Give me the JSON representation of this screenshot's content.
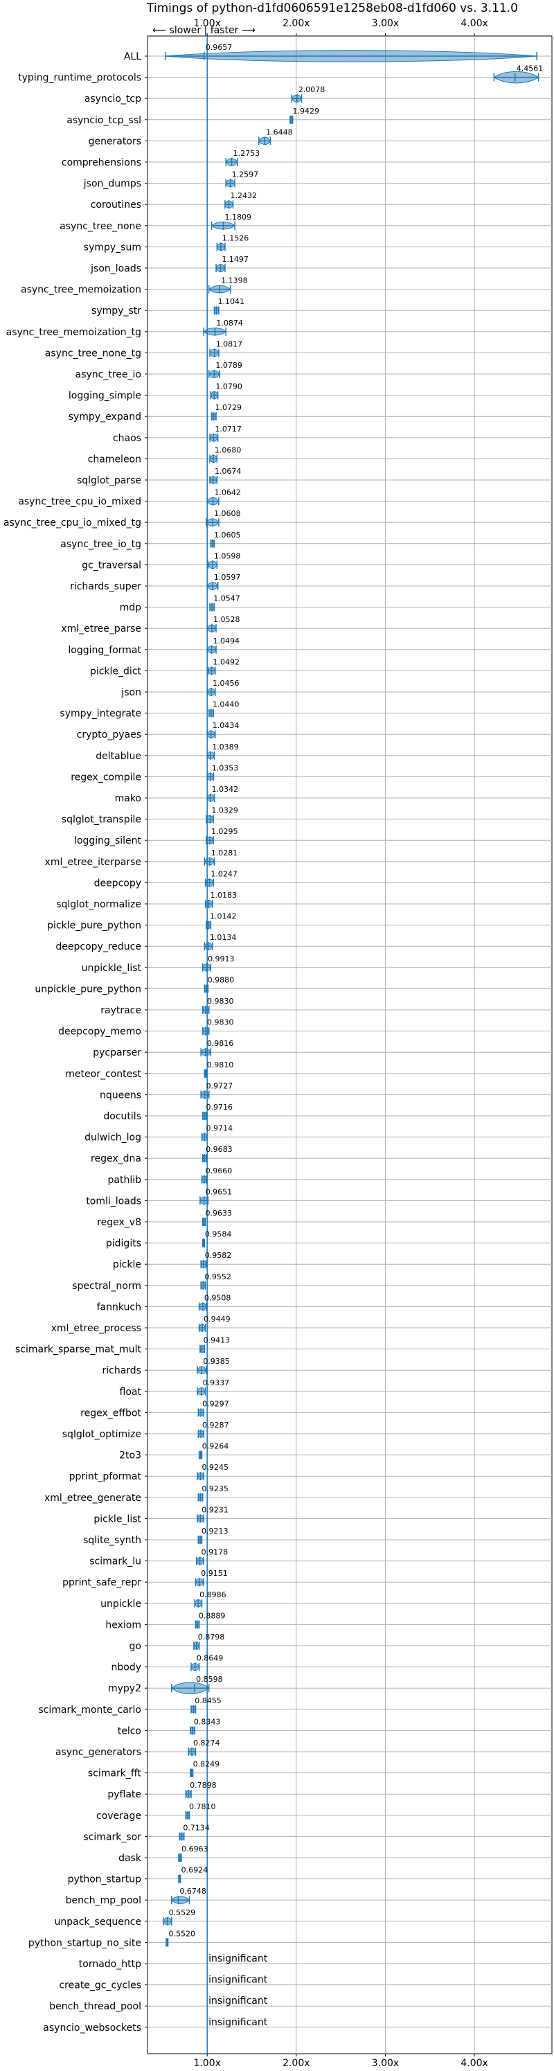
{
  "chart_data": {
    "type": "violin",
    "title": "Timings of python-d1fd0606591e1258eb08-d1fd060 vs. 3.11.0",
    "direction_label": "⟵ slower | faster ⟶",
    "x_ticks": [
      1,
      2,
      3,
      4
    ],
    "x_tick_labels": [
      "1.00x",
      "2.00x",
      "3.00x",
      "4.00x"
    ],
    "xlim": [
      0.33,
      4.87
    ],
    "reference_line": 1.0,
    "grid": true,
    "insignificant_label": "insignificant",
    "colors": {
      "violin": "#1f77b4",
      "reference": "#1f77b4",
      "median": "#ff7f0e",
      "grid": "#b0b0b0"
    },
    "rows": [
      {
        "name": "ALL",
        "value": 0.9657,
        "label": "0.9657",
        "lo": 0.53,
        "hi": 4.7,
        "width": "wide"
      },
      {
        "name": "typing_runtime_protocols",
        "value": 4.4561,
        "label": "4.4561",
        "lo": 4.22,
        "hi": 4.72,
        "width": "wide"
      },
      {
        "name": "asyncio_tcp",
        "value": 2.0078,
        "label": "2.0078",
        "lo": 1.95,
        "hi": 2.06
      },
      {
        "name": "asyncio_tcp_ssl",
        "value": 1.9429,
        "label": "1.9429",
        "lo": 1.93,
        "hi": 1.96
      },
      {
        "name": "generators",
        "value": 1.6448,
        "label": "1.6448",
        "lo": 1.58,
        "hi": 1.71
      },
      {
        "name": "comprehensions",
        "value": 1.2753,
        "label": "1.2753",
        "lo": 1.21,
        "hi": 1.34
      },
      {
        "name": "json_dumps",
        "value": 1.2597,
        "label": "1.2597",
        "lo": 1.21,
        "hi": 1.31
      },
      {
        "name": "coroutines",
        "value": 1.2432,
        "label": "1.2432",
        "lo": 1.2,
        "hi": 1.29
      },
      {
        "name": "async_tree_none",
        "value": 1.1809,
        "label": "1.1809",
        "lo": 1.05,
        "hi": 1.31
      },
      {
        "name": "sympy_sum",
        "value": 1.1526,
        "label": "1.1526",
        "lo": 1.11,
        "hi": 1.2
      },
      {
        "name": "json_loads",
        "value": 1.1497,
        "label": "1.1497",
        "lo": 1.1,
        "hi": 1.2
      },
      {
        "name": "async_tree_memoization",
        "value": 1.1398,
        "label": "1.1398",
        "lo": 1.02,
        "hi": 1.26
      },
      {
        "name": "sympy_str",
        "value": 1.1041,
        "label": "1.1041",
        "lo": 1.08,
        "hi": 1.13
      },
      {
        "name": "async_tree_memoization_tg",
        "value": 1.0874,
        "label": "1.0874",
        "lo": 0.96,
        "hi": 1.21
      },
      {
        "name": "async_tree_none_tg",
        "value": 1.0817,
        "label": "1.0817",
        "lo": 1.03,
        "hi": 1.13
      },
      {
        "name": "async_tree_io",
        "value": 1.0789,
        "label": "1.0789",
        "lo": 1.02,
        "hi": 1.14
      },
      {
        "name": "logging_simple",
        "value": 1.079,
        "label": "1.0790",
        "lo": 1.04,
        "hi": 1.12
      },
      {
        "name": "sympy_expand",
        "value": 1.0729,
        "label": "1.0729",
        "lo": 1.05,
        "hi": 1.1
      },
      {
        "name": "chaos",
        "value": 1.0717,
        "label": "1.0717",
        "lo": 1.03,
        "hi": 1.12
      },
      {
        "name": "chameleon",
        "value": 1.068,
        "label": "1.0680",
        "lo": 1.03,
        "hi": 1.11
      },
      {
        "name": "sqlglot_parse",
        "value": 1.0674,
        "label": "1.0674",
        "lo": 1.03,
        "hi": 1.11
      },
      {
        "name": "async_tree_cpu_io_mixed",
        "value": 1.0642,
        "label": "1.0642",
        "lo": 1.0,
        "hi": 1.13
      },
      {
        "name": "async_tree_cpu_io_mixed_tg",
        "value": 1.0608,
        "label": "1.0608",
        "lo": 0.99,
        "hi": 1.13
      },
      {
        "name": "async_tree_io_tg",
        "value": 1.0605,
        "label": "1.0605",
        "lo": 1.04,
        "hi": 1.08
      },
      {
        "name": "gc_traversal",
        "value": 1.0598,
        "label": "1.0598",
        "lo": 1.01,
        "hi": 1.11
      },
      {
        "name": "richards_super",
        "value": 1.0597,
        "label": "1.0597",
        "lo": 1.0,
        "hi": 1.12
      },
      {
        "name": "mdp",
        "value": 1.0547,
        "label": "1.0547",
        "lo": 1.03,
        "hi": 1.08
      },
      {
        "name": "xml_etree_parse",
        "value": 1.0528,
        "label": "1.0528",
        "lo": 1.0,
        "hi": 1.1
      },
      {
        "name": "logging_format",
        "value": 1.0494,
        "label": "1.0494",
        "lo": 1.0,
        "hi": 1.1
      },
      {
        "name": "pickle_dict",
        "value": 1.0492,
        "label": "1.0492",
        "lo": 1.01,
        "hi": 1.09
      },
      {
        "name": "json",
        "value": 1.0456,
        "label": "1.0456",
        "lo": 1.0,
        "hi": 1.09
      },
      {
        "name": "sympy_integrate",
        "value": 1.044,
        "label": "1.0440",
        "lo": 1.02,
        "hi": 1.07
      },
      {
        "name": "crypto_pyaes",
        "value": 1.0434,
        "label": "1.0434",
        "lo": 1.0,
        "hi": 1.09
      },
      {
        "name": "deltablue",
        "value": 1.0389,
        "label": "1.0389",
        "lo": 1.0,
        "hi": 1.08
      },
      {
        "name": "regex_compile",
        "value": 1.0353,
        "label": "1.0353",
        "lo": 1.0,
        "hi": 1.07
      },
      {
        "name": "mako",
        "value": 1.0342,
        "label": "1.0342",
        "lo": 1.0,
        "hi": 1.08
      },
      {
        "name": "sqlglot_transpile",
        "value": 1.0329,
        "label": "1.0329",
        "lo": 0.99,
        "hi": 1.07
      },
      {
        "name": "logging_silent",
        "value": 1.0295,
        "label": "1.0295",
        "lo": 0.99,
        "hi": 1.07
      },
      {
        "name": "xml_etree_iterparse",
        "value": 1.0281,
        "label": "1.0281",
        "lo": 0.97,
        "hi": 1.08
      },
      {
        "name": "deepcopy",
        "value": 1.0247,
        "label": "1.0247",
        "lo": 0.98,
        "hi": 1.07
      },
      {
        "name": "sqlglot_normalize",
        "value": 1.0183,
        "label": "1.0183",
        "lo": 0.98,
        "hi": 1.06
      },
      {
        "name": "pickle_pure_python",
        "value": 1.0142,
        "label": "1.0142",
        "lo": 0.99,
        "hi": 1.04
      },
      {
        "name": "deepcopy_reduce",
        "value": 1.0134,
        "label": "1.0134",
        "lo": 0.97,
        "hi": 1.06
      },
      {
        "name": "unpickle_list",
        "value": 0.9913,
        "label": "0.9913",
        "lo": 0.95,
        "hi": 1.04
      },
      {
        "name": "unpickle_pure_python",
        "value": 0.988,
        "label": "0.9880",
        "lo": 0.97,
        "hi": 1.01
      },
      {
        "name": "raytrace",
        "value": 0.983,
        "label": "0.9830",
        "lo": 0.95,
        "hi": 1.02
      },
      {
        "name": "deepcopy_memo",
        "value": 0.983,
        "label": "0.9830",
        "lo": 0.95,
        "hi": 1.02
      },
      {
        "name": "pycparser",
        "value": 0.9816,
        "label": "0.9816",
        "lo": 0.93,
        "hi": 1.04
      },
      {
        "name": "meteor_contest",
        "value": 0.981,
        "label": "0.9810",
        "lo": 0.97,
        "hi": 0.99
      },
      {
        "name": "nqueens",
        "value": 0.9727,
        "label": "0.9727",
        "lo": 0.93,
        "hi": 1.02
      },
      {
        "name": "docutils",
        "value": 0.9716,
        "label": "0.9716",
        "lo": 0.95,
        "hi": 0.99
      },
      {
        "name": "dulwich_log",
        "value": 0.9714,
        "label": "0.9714",
        "lo": 0.94,
        "hi": 1.0
      },
      {
        "name": "regex_dna",
        "value": 0.9683,
        "label": "0.9683",
        "lo": 0.95,
        "hi": 0.99
      },
      {
        "name": "pathlib",
        "value": 0.966,
        "label": "0.9660",
        "lo": 0.94,
        "hi": 0.99
      },
      {
        "name": "tomli_loads",
        "value": 0.9651,
        "label": "0.9651",
        "lo": 0.92,
        "hi": 1.01
      },
      {
        "name": "regex_v8",
        "value": 0.9633,
        "label": "0.9633",
        "lo": 0.95,
        "hi": 0.98
      },
      {
        "name": "pidigits",
        "value": 0.9584,
        "label": "0.9584",
        "lo": 0.95,
        "hi": 0.97
      },
      {
        "name": "pickle",
        "value": 0.9582,
        "label": "0.9582",
        "lo": 0.93,
        "hi": 0.99
      },
      {
        "name": "spectral_norm",
        "value": 0.9552,
        "label": "0.9552",
        "lo": 0.93,
        "hi": 0.98
      },
      {
        "name": "fannkuch",
        "value": 0.9508,
        "label": "0.9508",
        "lo": 0.91,
        "hi": 0.99
      },
      {
        "name": "xml_etree_process",
        "value": 0.9449,
        "label": "0.9449",
        "lo": 0.91,
        "hi": 0.98
      },
      {
        "name": "scimark_sparse_mat_mult",
        "value": 0.9413,
        "label": "0.9413",
        "lo": 0.92,
        "hi": 0.97
      },
      {
        "name": "richards",
        "value": 0.9385,
        "label": "0.9385",
        "lo": 0.89,
        "hi": 0.99
      },
      {
        "name": "float",
        "value": 0.9337,
        "label": "0.9337",
        "lo": 0.89,
        "hi": 0.98
      },
      {
        "name": "regex_effbot",
        "value": 0.9297,
        "label": "0.9297",
        "lo": 0.9,
        "hi": 0.96
      },
      {
        "name": "sqlglot_optimize",
        "value": 0.9287,
        "label": "0.9287",
        "lo": 0.9,
        "hi": 0.96
      },
      {
        "name": "2to3",
        "value": 0.9264,
        "label": "0.9264",
        "lo": 0.91,
        "hi": 0.94
      },
      {
        "name": "pprint_pformat",
        "value": 0.9245,
        "label": "0.9245",
        "lo": 0.89,
        "hi": 0.96
      },
      {
        "name": "xml_etree_generate",
        "value": 0.9235,
        "label": "0.9235",
        "lo": 0.9,
        "hi": 0.95
      },
      {
        "name": "pickle_list",
        "value": 0.9231,
        "label": "0.9231",
        "lo": 0.89,
        "hi": 0.96
      },
      {
        "name": "sqlite_synth",
        "value": 0.9213,
        "label": "0.9213",
        "lo": 0.9,
        "hi": 0.94
      },
      {
        "name": "scimark_lu",
        "value": 0.9178,
        "label": "0.9178",
        "lo": 0.88,
        "hi": 0.96
      },
      {
        "name": "pprint_safe_repr",
        "value": 0.9151,
        "label": "0.9151",
        "lo": 0.87,
        "hi": 0.96
      },
      {
        "name": "unpickle",
        "value": 0.8986,
        "label": "0.8986",
        "lo": 0.86,
        "hi": 0.94
      },
      {
        "name": "hexiom",
        "value": 0.8889,
        "label": "0.8889",
        "lo": 0.87,
        "hi": 0.91
      },
      {
        "name": "go",
        "value": 0.8798,
        "label": "0.8798",
        "lo": 0.85,
        "hi": 0.91
      },
      {
        "name": "nbody",
        "value": 0.8649,
        "label": "0.8649",
        "lo": 0.82,
        "hi": 0.91
      },
      {
        "name": "mypy2",
        "value": 0.8598,
        "label": "0.8598",
        "lo": 0.6,
        "hi": 1.02,
        "width": "wide"
      },
      {
        "name": "scimark_monte_carlo",
        "value": 0.8455,
        "label": "0.8455",
        "lo": 0.82,
        "hi": 0.87
      },
      {
        "name": "telco",
        "value": 0.8343,
        "label": "0.8343",
        "lo": 0.81,
        "hi": 0.86
      },
      {
        "name": "async_generators",
        "value": 0.8274,
        "label": "0.8274",
        "lo": 0.79,
        "hi": 0.87
      },
      {
        "name": "scimark_fft",
        "value": 0.8249,
        "label": "0.8249",
        "lo": 0.81,
        "hi": 0.84
      },
      {
        "name": "pyflate",
        "value": 0.7898,
        "label": "0.7898",
        "lo": 0.76,
        "hi": 0.82
      },
      {
        "name": "coverage",
        "value": 0.781,
        "label": "0.7810",
        "lo": 0.76,
        "hi": 0.8
      },
      {
        "name": "scimark_sor",
        "value": 0.7134,
        "label": "0.7134",
        "lo": 0.69,
        "hi": 0.74
      },
      {
        "name": "dask",
        "value": 0.6963,
        "label": "0.6963",
        "lo": 0.68,
        "hi": 0.71
      },
      {
        "name": "python_startup",
        "value": 0.6924,
        "label": "0.6924",
        "lo": 0.68,
        "hi": 0.7
      },
      {
        "name": "bench_mp_pool",
        "value": 0.6748,
        "label": "0.6748",
        "lo": 0.6,
        "hi": 0.8
      },
      {
        "name": "unpack_sequence",
        "value": 0.5529,
        "label": "0.5529",
        "lo": 0.51,
        "hi": 0.6
      },
      {
        "name": "python_startup_no_site",
        "value": 0.552,
        "label": "0.5520",
        "lo": 0.54,
        "hi": 0.56
      },
      {
        "name": "tornado_http",
        "value": null,
        "insignificant": true
      },
      {
        "name": "create_gc_cycles",
        "value": null,
        "insignificant": true
      },
      {
        "name": "bench_thread_pool",
        "value": null,
        "insignificant": true
      },
      {
        "name": "asyncio_websockets",
        "value": null,
        "insignificant": true
      }
    ]
  }
}
